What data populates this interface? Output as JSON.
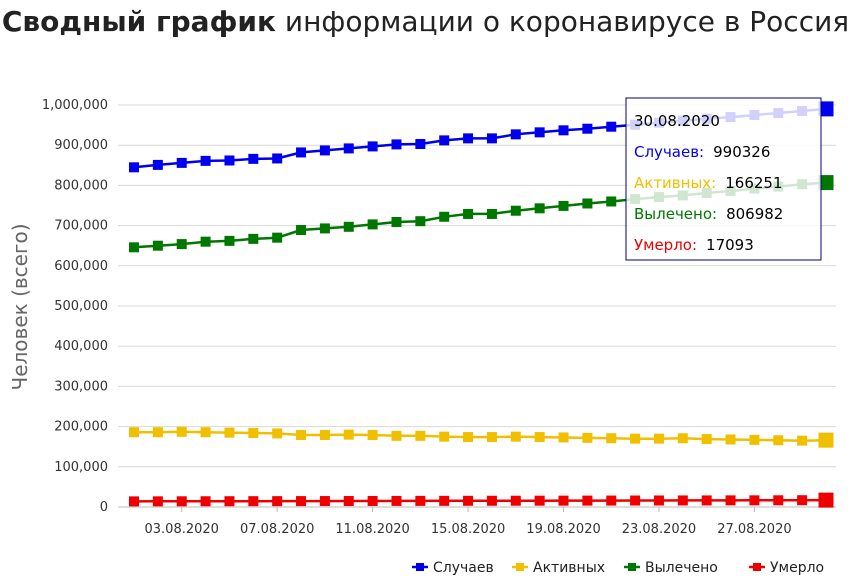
{
  "title": {
    "bold": "Сводный график",
    "rest": " информации о коронавирусе в Россия"
  },
  "chart_data": {
    "type": "line",
    "ylabel": "Человек (всего)",
    "xlabel": "",
    "ylim": [
      0,
      1000000
    ],
    "y_ticks": [
      0,
      100000,
      200000,
      300000,
      400000,
      500000,
      600000,
      700000,
      800000,
      900000,
      1000000
    ],
    "y_tick_labels": [
      "0",
      "100,000",
      "200,000",
      "300,000",
      "400,000",
      "500,000",
      "600,000",
      "700,000",
      "800,000",
      "900,000",
      "1,000,000"
    ],
    "x_tick_labels": [
      "03.08.2020",
      "07.08.2020",
      "11.08.2020",
      "15.08.2020",
      "19.08.2020",
      "23.08.2020",
      "27.08.2020"
    ],
    "x_tick_index": [
      2,
      6,
      10,
      14,
      18,
      22,
      26
    ],
    "categories": [
      "01.08.2020",
      "02.08.2020",
      "03.08.2020",
      "04.08.2020",
      "05.08.2020",
      "06.08.2020",
      "07.08.2020",
      "08.08.2020",
      "09.08.2020",
      "10.08.2020",
      "11.08.2020",
      "12.08.2020",
      "13.08.2020",
      "14.08.2020",
      "15.08.2020",
      "16.08.2020",
      "17.08.2020",
      "18.08.2020",
      "19.08.2020",
      "20.08.2020",
      "21.08.2020",
      "22.08.2020",
      "23.08.2020",
      "24.08.2020",
      "25.08.2020",
      "26.08.2020",
      "27.08.2020",
      "28.08.2020",
      "29.08.2020",
      "30.08.2020"
    ],
    "grid": true,
    "legend_position": "bottom-right",
    "series": [
      {
        "name": "Случаев",
        "color": "#0000ee",
        "values": [
          845000,
          851000,
          856000,
          861000,
          862000,
          866000,
          867000,
          882000,
          887000,
          892000,
          897000,
          902000,
          903000,
          912000,
          917000,
          917000,
          927000,
          932000,
          937000,
          941000,
          946000,
          951000,
          956000,
          961000,
          966000,
          970000,
          975000,
          980000,
          985000,
          990326
        ]
      },
      {
        "name": "Активных",
        "color": "#f0c000",
        "values": [
          186000,
          186000,
          187000,
          186000,
          185000,
          184000,
          183000,
          179000,
          179000,
          180000,
          179000,
          177000,
          177000,
          175000,
          174000,
          174000,
          175000,
          174000,
          173000,
          172000,
          171000,
          170000,
          170000,
          171000,
          169000,
          168000,
          167000,
          166000,
          165000,
          166251
        ]
      },
      {
        "name": "Вылечено",
        "color": "#007700",
        "values": [
          646000,
          650000,
          654000,
          660000,
          662000,
          667000,
          670000,
          689000,
          693000,
          697000,
          703000,
          709000,
          711000,
          722000,
          729000,
          729000,
          737000,
          743000,
          749000,
          755000,
          760000,
          766000,
          771000,
          775000,
          781000,
          786000,
          792000,
          797000,
          803000,
          806982
        ]
      },
      {
        "name": "Умерло",
        "color": "#ee0000",
        "values": [
          14000,
          14100,
          14200,
          14300,
          14400,
          14500,
          14600,
          14700,
          14800,
          14900,
          15000,
          15100,
          15200,
          15300,
          15400,
          15500,
          15600,
          15700,
          15800,
          15900,
          16000,
          16100,
          16200,
          16300,
          16400,
          16500,
          16600,
          16700,
          16900,
          17093
        ]
      }
    ],
    "tooltip": {
      "date": "30.08.2020",
      "rows": [
        {
          "label": "Случаев:",
          "value": "990326",
          "color": "#0000ee"
        },
        {
          "label": "Активных:",
          "value": "166251",
          "color": "#f0c000"
        },
        {
          "label": "Вылечено:",
          "value": "806982",
          "color": "#007700"
        },
        {
          "label": "Умерло:",
          "value": "17093",
          "color": "#ee0000"
        }
      ]
    }
  }
}
